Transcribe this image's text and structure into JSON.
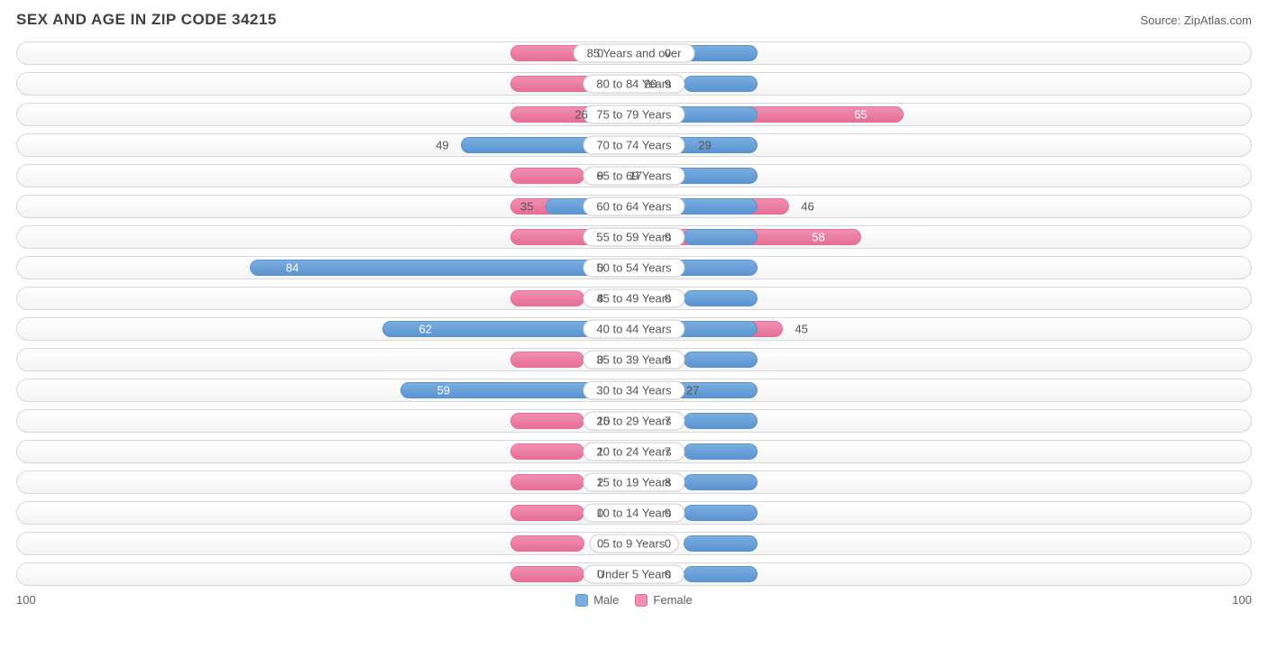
{
  "title": "SEX AND AGE IN ZIP CODE 34215",
  "source": "Source: ZipAtlas.com",
  "axis": {
    "max": 100,
    "left_label": "100",
    "right_label": "100"
  },
  "legend": {
    "male": "Male",
    "female": "Female"
  },
  "colors": {
    "male_fill": "#7aaee0",
    "male_border": "#5b94cf",
    "female_fill": "#f08fb0",
    "female_border": "#e56f97",
    "row_border": "#d8d8d8",
    "text": "#555555",
    "min_bar_width_pct": 6,
    "label_half_width_pct": 10,
    "inside_threshold": 50
  },
  "rows": [
    {
      "label": "85 Years and over",
      "male": 0,
      "female": 0
    },
    {
      "label": "80 to 84 Years",
      "male": 9,
      "female": 20
    },
    {
      "label": "75 to 79 Years",
      "male": 26,
      "female": 65
    },
    {
      "label": "70 to 74 Years",
      "male": 49,
      "female": 29
    },
    {
      "label": "65 to 69 Years",
      "male": 17,
      "female": 9
    },
    {
      "label": "60 to 64 Years",
      "male": 35,
      "female": 46
    },
    {
      "label": "55 to 59 Years",
      "male": 0,
      "female": 58
    },
    {
      "label": "50 to 54 Years",
      "male": 84,
      "female": 0
    },
    {
      "label": "45 to 49 Years",
      "male": 0,
      "female": 8
    },
    {
      "label": "40 to 44 Years",
      "male": 62,
      "female": 45
    },
    {
      "label": "35 to 39 Years",
      "male": 0,
      "female": 0
    },
    {
      "label": "30 to 34 Years",
      "male": 59,
      "female": 27
    },
    {
      "label": "25 to 29 Years",
      "male": 7,
      "female": 10
    },
    {
      "label": "20 to 24 Years",
      "male": 7,
      "female": 1
    },
    {
      "label": "15 to 19 Years",
      "male": 8,
      "female": 2
    },
    {
      "label": "10 to 14 Years",
      "male": 0,
      "female": 0
    },
    {
      "label": "5 to 9 Years",
      "male": 0,
      "female": 0
    },
    {
      "label": "Under 5 Years",
      "male": 0,
      "female": 0
    }
  ]
}
